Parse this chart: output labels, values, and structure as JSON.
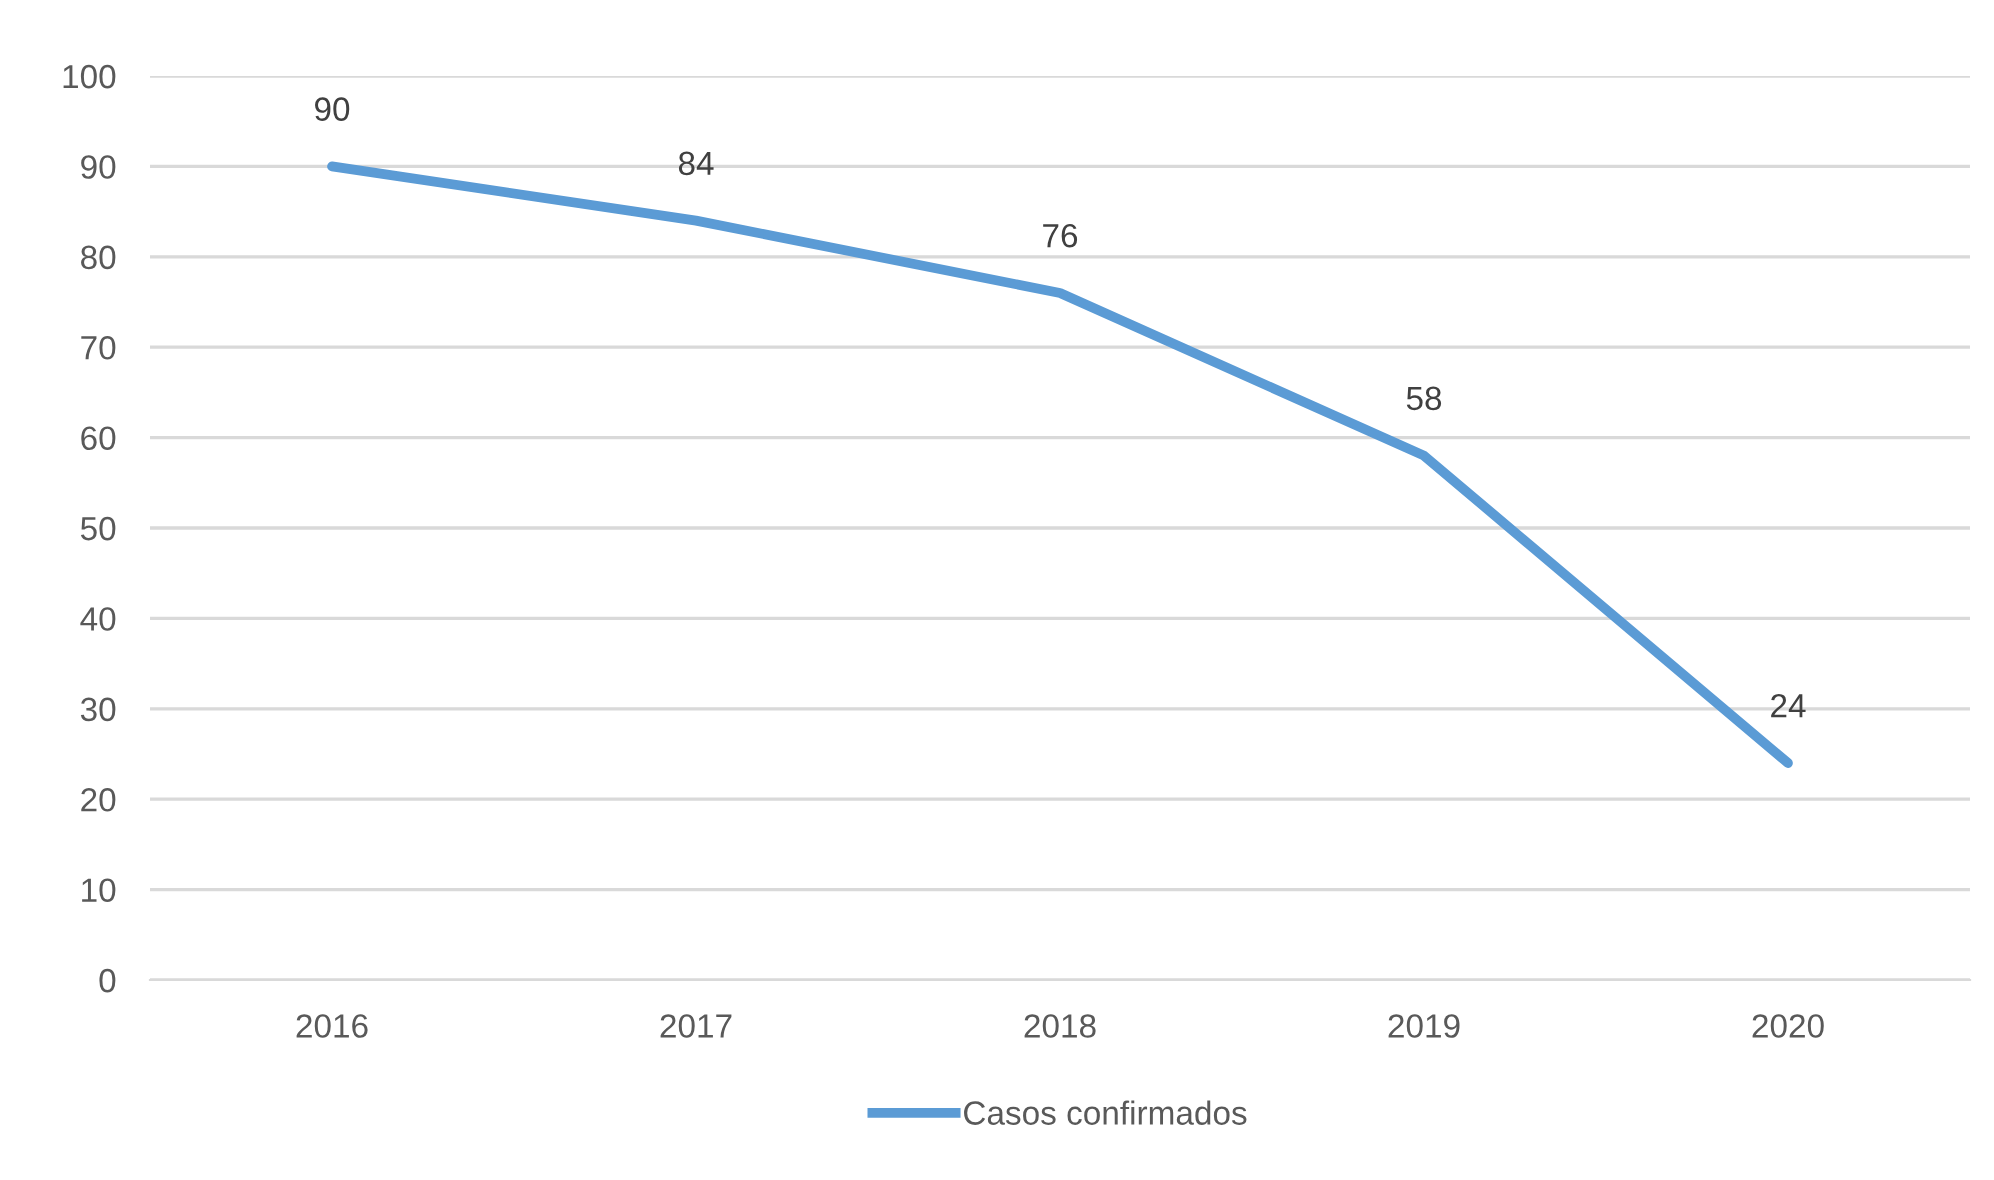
{
  "chart_data": {
    "type": "line",
    "categories": [
      "2016",
      "2017",
      "2018",
      "2019",
      "2020"
    ],
    "series": [
      {
        "name": "Casos confirmados",
        "color": "#5b9bd5",
        "values": [
          90,
          84,
          76,
          58,
          24
        ]
      }
    ],
    "ylim": [
      0,
      100
    ],
    "yticks": [
      0,
      10,
      20,
      30,
      40,
      50,
      60,
      70,
      80,
      90,
      100
    ],
    "grid": "y",
    "legend": "bottom",
    "data_labels": true,
    "marker": "none",
    "line_style": "solid"
  }
}
